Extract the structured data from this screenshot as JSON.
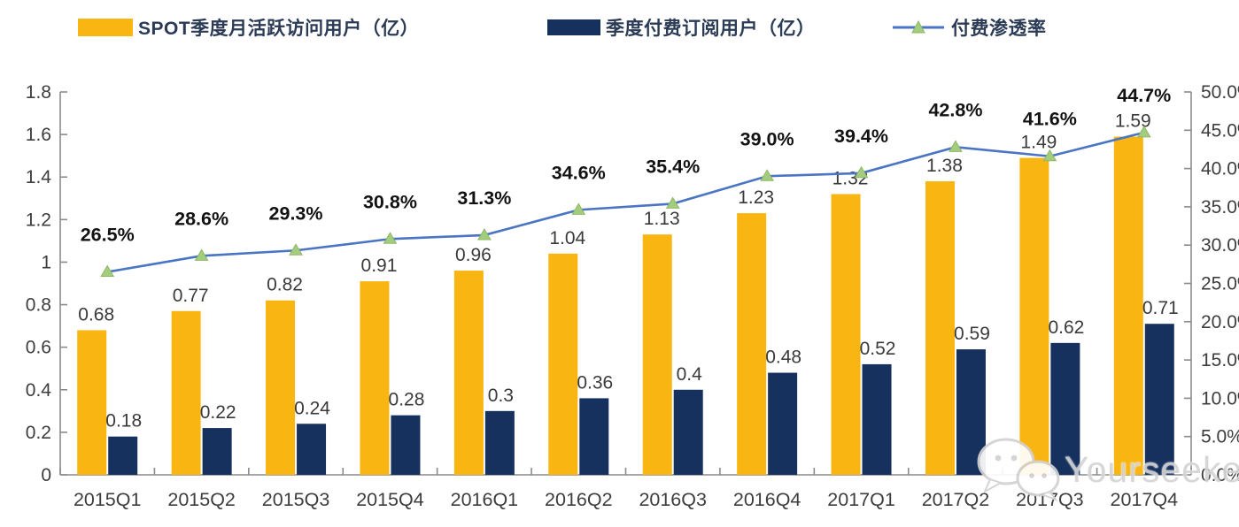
{
  "legend": [
    {
      "label": "SPOT季度月活跃访问用户（亿）",
      "type": "bar",
      "color": "#F9B612"
    },
    {
      "label": "季度付费订阅用户（亿）",
      "type": "bar",
      "color": "#17315F"
    },
    {
      "label": "付费渗透率",
      "type": "line",
      "color": "#4A74C4",
      "marker_color": "#A4CC7E",
      "marker_edge": "#8DB863"
    }
  ],
  "chart_data": {
    "type": "combo-grouped-bar-line",
    "title": "",
    "categories": [
      "2015Q1",
      "2015Q2",
      "2015Q3",
      "2015Q4",
      "2016Q1",
      "2016Q2",
      "2016Q3",
      "2016Q4",
      "2017Q1",
      "2017Q2",
      "2017Q3",
      "2017Q4"
    ],
    "series": [
      {
        "name": "SPOT季度月活跃访问用户（亿）",
        "type": "bar",
        "axis": "left",
        "color": "#F9B612",
        "values": [
          0.68,
          0.77,
          0.82,
          0.91,
          0.96,
          1.04,
          1.13,
          1.23,
          1.32,
          1.38,
          1.49,
          1.59
        ],
        "labels": [
          "0.68",
          "0.77",
          "0.82",
          "0.91",
          "0.96",
          "1.04",
          "1.13",
          "1.23",
          "1.32",
          "1.38",
          "1.49",
          "1.59"
        ]
      },
      {
        "name": "季度付费订阅用户（亿）",
        "type": "bar",
        "axis": "left",
        "color": "#17315F",
        "values": [
          0.18,
          0.22,
          0.24,
          0.28,
          0.3,
          0.36,
          0.4,
          0.48,
          0.52,
          0.59,
          0.62,
          0.71
        ],
        "labels": [
          "0.18",
          "0.22",
          "0.24",
          "0.28",
          "0.3",
          "0.36",
          "0.4",
          "0.48",
          "0.52",
          "0.59",
          "0.62",
          "0.71"
        ]
      },
      {
        "name": "付费渗透率",
        "type": "line",
        "axis": "right",
        "color": "#4A74C4",
        "marker": "triangle",
        "marker_color": "#A4CC7E",
        "marker_edge": "#8DB863",
        "values": [
          26.5,
          28.6,
          29.3,
          30.8,
          31.3,
          34.6,
          35.4,
          39.0,
          39.4,
          42.8,
          41.6,
          44.7
        ],
        "labels": [
          "26.5%",
          "28.6%",
          "29.3%",
          "30.8%",
          "31.3%",
          "34.6%",
          "35.4%",
          "39.0%",
          "39.4%",
          "42.8%",
          "41.6%",
          "44.7%"
        ]
      }
    ],
    "left_axis": {
      "min": 0,
      "max": 1.8,
      "step": 0.2,
      "ticks": [
        "0",
        "0.2",
        "0.4",
        "0.6",
        "0.8",
        "1",
        "1.2",
        "1.4",
        "1.6",
        "1.8"
      ]
    },
    "right_axis": {
      "min": 0,
      "max": 50,
      "step": 5,
      "ticks": [
        "0.0%",
        "5.0%",
        "10.0%",
        "15.0%",
        "20.0%",
        "25.0%",
        "30.0%",
        "35.0%",
        "40.0%",
        "45.0%",
        "50.0%"
      ]
    },
    "grid": false,
    "legend_position": "top",
    "axis_color": "#8a8a8a",
    "tick_label_color": "#3d3d3d",
    "value_label_color": "#3a3a3a",
    "pct_label_color": "#121212"
  },
  "watermark": {
    "text": "Yourseeker",
    "icon": "wechat-icon"
  }
}
